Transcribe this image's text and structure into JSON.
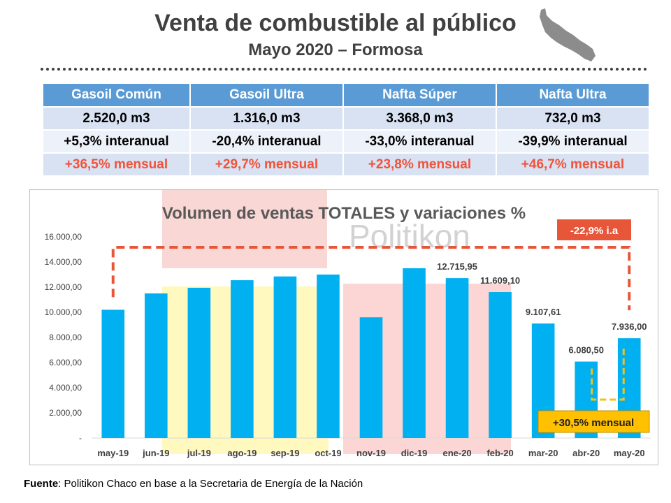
{
  "header": {
    "title": "Venta de combustible al público",
    "subtitle": "Mayo 2020 – Formosa"
  },
  "kpi_table": {
    "columns": [
      "Gasoil Común",
      "Gasoil Ultra",
      "Nafta Súper",
      "Nafta Ultra"
    ],
    "volumes": [
      "2.520,0 m3",
      "1.316,0 m3",
      "3.368,0 m3",
      "732,0 m3"
    ],
    "interanual": [
      "+5,3% interanual",
      "-20,4% interanual",
      "-33,0% interanual",
      "-39,9% interanual"
    ],
    "mensual": [
      "+36,5% mensual",
      "+29,7% mensual",
      "+23,8% mensual",
      "+46,7% mensual"
    ]
  },
  "chart_data": {
    "type": "bar",
    "title": "Volumen de ventas TOTALES y variaciones %",
    "watermark": "Politikon",
    "categories": [
      "may-19",
      "jun-19",
      "jul-19",
      "ago-19",
      "sep-19",
      "oct-19",
      "nov-19",
      "dic-19",
      "ene-20",
      "feb-20",
      "mar-20",
      "abr-20",
      "may-20"
    ],
    "values": [
      10200,
      11500,
      11950,
      12550,
      12850,
      13000,
      9600,
      13500,
      12715.95,
      11609.1,
      9107.61,
      6080.5,
      7936.0
    ],
    "data_labels": [
      "",
      "",
      "",
      "",
      "",
      "",
      "",
      "",
      "12.715,95",
      "11.609,10",
      "9.107,61",
      "6.080,50",
      "7.936,00"
    ],
    "y_ticks": [
      "-",
      "2.000,00",
      "4.000,00",
      "6.000,00",
      "8.000,00",
      "10.000,00",
      "12.000,00",
      "14.000,00",
      "16.000,00"
    ],
    "ylim": [
      0,
      16000
    ],
    "bar_color": "#00b0f0",
    "annotations": {
      "interanual": "-22,9% i.a",
      "mensual": "+30,5% mensual"
    }
  },
  "footer": {
    "source_label": "Fuente",
    "source_text": ": Politikon Chaco en base a la Secretaria de Energía de la Nación"
  }
}
